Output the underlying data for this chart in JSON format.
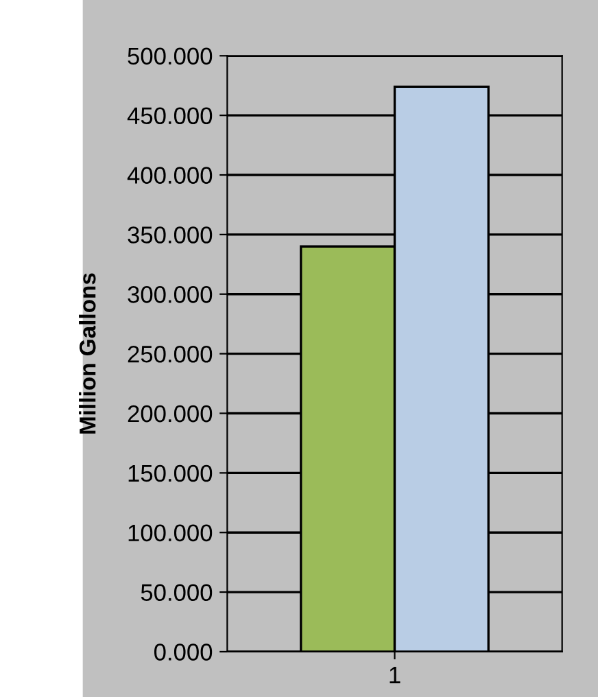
{
  "chart_data": {
    "type": "bar",
    "ylabel": "Million Gallons",
    "categories": [
      "1"
    ],
    "series": [
      {
        "color": "#9bbb59",
        "values": [
          340
        ]
      },
      {
        "color": "#b9cde5",
        "values": [
          474
        ]
      }
    ],
    "ylim": [
      0,
      500
    ],
    "yticks": [
      {
        "value": 0,
        "label": "0.000"
      },
      {
        "value": 50,
        "label": "50.000"
      },
      {
        "value": 100,
        "label": "100.000"
      },
      {
        "value": 150,
        "label": "150.000"
      },
      {
        "value": 200,
        "label": "200.000"
      },
      {
        "value": 250,
        "label": "250.000"
      },
      {
        "value": 300,
        "label": "300.000"
      },
      {
        "value": 350,
        "label": "350.000"
      },
      {
        "value": 400,
        "label": "400.000"
      },
      {
        "value": 450,
        "label": "450.000"
      },
      {
        "value": 500,
        "label": "500.000"
      }
    ],
    "grid": "y"
  }
}
